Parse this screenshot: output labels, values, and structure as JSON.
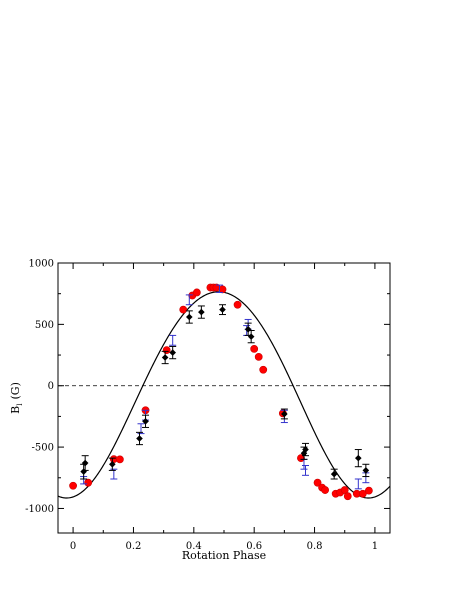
{
  "chart_data": {
    "type": "scatter",
    "title": "",
    "xlabel": "Rotation Phase",
    "ylabel_main": "B",
    "ylabel_sub": "l",
    "ylabel_unit": "(G)",
    "xlim": [
      -0.05,
      1.05
    ],
    "ylim": [
      -1200,
      1000
    ],
    "xticks": [
      0,
      0.2,
      0.4,
      0.6,
      0.8,
      1
    ],
    "xtick_labels": [
      "0",
      "0.2",
      "0.4",
      "0.6",
      "0.8",
      "1"
    ],
    "yticks": [
      -1000,
      -500,
      0,
      500,
      1000
    ],
    "ytick_labels": [
      "-1000",
      "-500",
      "0",
      "500",
      "1000"
    ],
    "grid": false,
    "zero_line": "dashed",
    "colors": {
      "red": "#ff0000",
      "red_edge": "#cc0000",
      "blue": "#3333cc",
      "black": "#000000",
      "fit": "#000000"
    },
    "fit_curve": {
      "type": "line",
      "offset": -40,
      "harmonics": [
        {
          "a": 840,
          "n": 1,
          "phase": 0.48
        },
        {
          "a": 35,
          "n": 2,
          "phase": 0.22
        }
      ]
    },
    "series": [
      {
        "marker": "circle",
        "color": "red",
        "points": [
          [
            0.0,
            -815
          ],
          [
            0.05,
            -790
          ],
          [
            0.135,
            -598
          ],
          [
            0.155,
            -600
          ],
          [
            0.24,
            -200
          ],
          [
            0.31,
            290
          ],
          [
            0.365,
            620
          ],
          [
            0.395,
            735
          ],
          [
            0.41,
            760
          ],
          [
            0.455,
            800
          ],
          [
            0.465,
            800
          ],
          [
            0.475,
            800
          ],
          [
            0.495,
            785
          ],
          [
            0.545,
            660
          ],
          [
            0.6,
            300
          ],
          [
            0.615,
            235
          ],
          [
            0.63,
            130
          ],
          [
            0.695,
            -225
          ],
          [
            0.755,
            -590
          ],
          [
            0.81,
            -790
          ],
          [
            0.825,
            -830
          ],
          [
            0.835,
            -850
          ],
          [
            0.87,
            -880
          ],
          [
            0.885,
            -870
          ],
          [
            0.9,
            -850
          ],
          [
            0.91,
            -900
          ],
          [
            0.94,
            -880
          ],
          [
            0.96,
            -880
          ],
          [
            0.98,
            -855
          ]
        ]
      },
      {
        "marker": "errorbar",
        "color": "blue",
        "points": [
          [
            0.035,
            -770,
            30
          ],
          [
            0.135,
            -720,
            40
          ],
          [
            0.225,
            -350,
            40
          ],
          [
            0.24,
            -240,
            40
          ],
          [
            0.33,
            370,
            40
          ],
          [
            0.385,
            700,
            40
          ],
          [
            0.485,
            790,
            30
          ],
          [
            0.58,
            500,
            40
          ],
          [
            0.575,
            450,
            40
          ],
          [
            0.7,
            -250,
            50
          ],
          [
            0.765,
            -640,
            40
          ],
          [
            0.77,
            -690,
            40
          ],
          [
            0.945,
            -800,
            40
          ],
          [
            0.97,
            -750,
            40
          ]
        ]
      },
      {
        "marker": "diamond",
        "color": "black",
        "points": [
          [
            0.035,
            -700,
            60
          ],
          [
            0.04,
            -630,
            60
          ],
          [
            0.13,
            -640,
            50
          ],
          [
            0.22,
            -430,
            50
          ],
          [
            0.24,
            -290,
            50
          ],
          [
            0.305,
            230,
            50
          ],
          [
            0.33,
            270,
            50
          ],
          [
            0.385,
            560,
            50
          ],
          [
            0.425,
            600,
            50
          ],
          [
            0.495,
            620,
            40
          ],
          [
            0.58,
            460,
            50
          ],
          [
            0.59,
            400,
            50
          ],
          [
            0.7,
            -230,
            40
          ],
          [
            0.765,
            -550,
            50
          ],
          [
            0.77,
            -520,
            50
          ],
          [
            0.865,
            -720,
            40
          ],
          [
            0.945,
            -590,
            70
          ],
          [
            0.97,
            -690,
            50
          ]
        ]
      }
    ]
  }
}
